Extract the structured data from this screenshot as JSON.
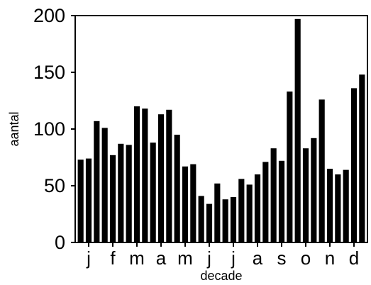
{
  "chart_data": {
    "type": "bar",
    "xlabel": "decade",
    "ylabel": "aantal",
    "ylim": [
      0,
      200
    ],
    "yticks": [
      0,
      50,
      100,
      150,
      200
    ],
    "month_labels": [
      "j",
      "f",
      "m",
      "a",
      "m",
      "j",
      "j",
      "a",
      "s",
      "o",
      "n",
      "d"
    ],
    "values": [
      73,
      74,
      107,
      101,
      77,
      87,
      86,
      120,
      118,
      88,
      113,
      117,
      95,
      67,
      69,
      41,
      34,
      52,
      38,
      40,
      56,
      51,
      60,
      71,
      83,
      72,
      133,
      197,
      83,
      92,
      126,
      65,
      60,
      64,
      136,
      148
    ],
    "grid": false,
    "bar_color": "#000000"
  }
}
